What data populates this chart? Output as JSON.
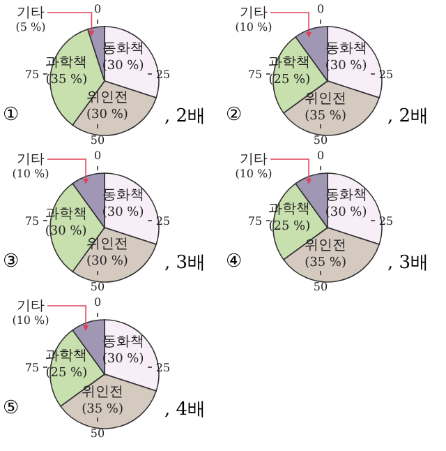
{
  "chart_data": [
    {
      "type": "pie",
      "categories": [
        "동화책",
        "위인전",
        "과학책",
        "기타"
      ],
      "values": [
        30,
        30,
        35,
        5
      ],
      "colors": [
        "#f8eef8",
        "#d5cac0",
        "#c8dfae",
        "#9f97b3"
      ],
      "value_labels": [
        "(30 %)",
        "(30 %)",
        "(35 %)",
        "(5 %)"
      ],
      "annotations": [
        "①",
        ", 2배",
        "0",
        "25",
        "50",
        "75"
      ]
    },
    {
      "type": "pie",
      "categories": [
        "동화책",
        "위인전",
        "과학책",
        "기타"
      ],
      "values": [
        30,
        35,
        25,
        10
      ],
      "colors": [
        "#f8eef8",
        "#d5cac0",
        "#c8dfae",
        "#9f97b3"
      ],
      "value_labels": [
        "(30 %)",
        "(35 %)",
        "(25 %)",
        "(10 %)"
      ],
      "annotations": [
        "②",
        ", 2배",
        "0",
        "25",
        "50",
        "75"
      ]
    },
    {
      "type": "pie",
      "categories": [
        "동화책",
        "위인전",
        "과학책",
        "기타"
      ],
      "values": [
        30,
        30,
        30,
        10
      ],
      "colors": [
        "#f8eef8",
        "#d5cac0",
        "#c8dfae",
        "#9f97b3"
      ],
      "value_labels": [
        "(30 %)",
        "(30 %)",
        "(30 %)",
        "(10 %)"
      ],
      "annotations": [
        "③",
        ", 3배",
        "0",
        "25",
        "50",
        "75"
      ]
    },
    {
      "type": "pie",
      "categories": [
        "동화책",
        "위인전",
        "과학책",
        "기타"
      ],
      "values": [
        30,
        35,
        25,
        10
      ],
      "colors": [
        "#f8eef8",
        "#d5cac0",
        "#c8dfae",
        "#9f97b3"
      ],
      "value_labels": [
        "(30 %)",
        "(35 %)",
        "(25 %)",
        "(10 %)"
      ],
      "annotations": [
        "④",
        ", 3배",
        "0",
        "25",
        "50",
        "75"
      ]
    },
    {
      "type": "pie",
      "categories": [
        "동화책",
        "위인전",
        "과학책",
        "기타"
      ],
      "values": [
        30,
        35,
        25,
        10
      ],
      "colors": [
        "#f8eef8",
        "#d5cac0",
        "#c8dfae",
        "#9f97b3"
      ],
      "value_labels": [
        "(30 %)",
        "(35 %)",
        "(25 %)",
        "(10 %)"
      ],
      "annotations": [
        "⑤",
        ", 4배",
        "0",
        "25",
        "50",
        "75"
      ]
    }
  ]
}
